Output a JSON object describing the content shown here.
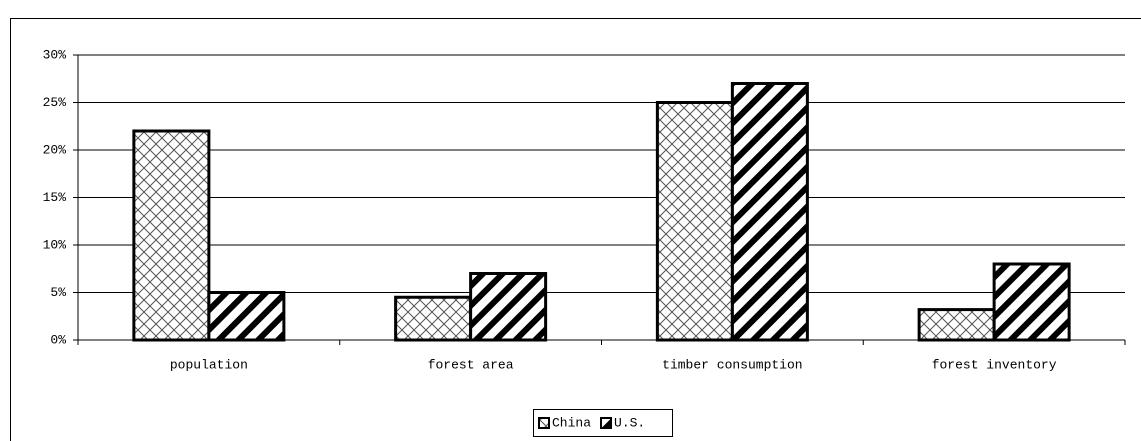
{
  "chart_data": {
    "type": "bar",
    "categories": [
      "population",
      "forest area",
      "timber consumption",
      "forest inventory"
    ],
    "series": [
      {
        "name": "China",
        "color": "#000000",
        "pattern": "crosshatch",
        "values": [
          22,
          4.5,
          25,
          3.2
        ]
      },
      {
        "name": "U.S.",
        "color": "#000000",
        "pattern": "diagonal",
        "values": [
          5,
          7,
          27,
          8
        ]
      }
    ],
    "ylim": [
      0,
      30
    ],
    "yticks": [
      {
        "value": 0,
        "label": "0%"
      },
      {
        "value": 5,
        "label": "5%"
      },
      {
        "value": 10,
        "label": "10%"
      },
      {
        "value": 15,
        "label": "15%"
      },
      {
        "value": 20,
        "label": "20%"
      },
      {
        "value": 25,
        "label": "25%"
      },
      {
        "value": 30,
        "label": "30%"
      }
    ],
    "grid": true,
    "legend": "bottom"
  }
}
